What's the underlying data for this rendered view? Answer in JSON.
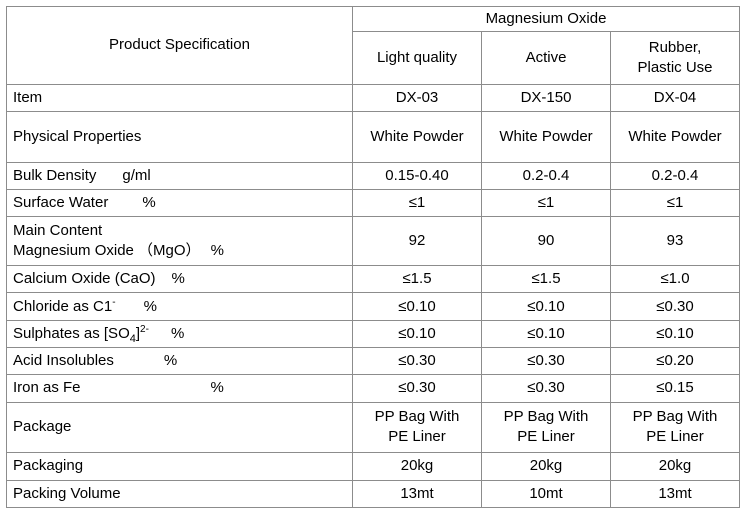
{
  "header": {
    "product_spec": "Product Specification",
    "group": "Magnesium Oxide",
    "col1": "Light quality",
    "col2": "Active",
    "col3_line1": "Rubber,",
    "col3_line2": "Plastic Use"
  },
  "rows": {
    "item": {
      "label": "Item",
      "v": [
        "DX-03",
        "DX-150",
        "DX-04"
      ]
    },
    "physical": {
      "label": "Physical Properties",
      "v": [
        "White Powder",
        "White Powder",
        "White Powder"
      ]
    },
    "bulk": {
      "label": "Bulk Density",
      "unit": "g/ml",
      "v": [
        "0.15-0.40",
        "0.2-0.4",
        "0.2-0.4"
      ]
    },
    "surface": {
      "label": "Surface Water",
      "unit": "%",
      "v": [
        "≤1",
        "≤1",
        "≤1"
      ]
    },
    "main": {
      "label_line1": "Main Content",
      "label_line2": "Magnesium Oxide （MgO）",
      "unit": "%",
      "v": [
        "92",
        "90",
        "93"
      ]
    },
    "calcium": {
      "label": "Calcium Oxide (CaO)",
      "unit": "%",
      "v": [
        "≤1.5",
        "≤1.5",
        "≤1.0"
      ]
    },
    "chloride": {
      "label": "Chloride as C1",
      "sup": "-",
      "unit": "%",
      "v": [
        "≤0.10",
        "≤0.10",
        "≤0.30"
      ]
    },
    "sulphates": {
      "label": "Sulphates as [SO",
      "sub": "4",
      "close": "]",
      "sup": "2-",
      "unit": "%",
      "v": [
        "≤0.10",
        "≤0.10",
        "≤0.10"
      ]
    },
    "acid": {
      "label": "Acid Insolubles",
      "unit": "%",
      "v": [
        "≤0.30",
        "≤0.30",
        "≤0.20"
      ]
    },
    "iron": {
      "label": "Iron as Fe",
      "unit": "%",
      "v": [
        "≤0.30",
        "≤0.30",
        "≤0.15"
      ]
    },
    "package": {
      "label": "Package",
      "v_line1": "PP Bag With",
      "v_line2": "PE Liner"
    },
    "packaging": {
      "label": "Packaging",
      "v": [
        "20kg",
        "20kg",
        "20kg"
      ]
    },
    "volume": {
      "label": "Packing Volume",
      "v": [
        "13mt",
        "10mt",
        "13mt"
      ]
    }
  }
}
